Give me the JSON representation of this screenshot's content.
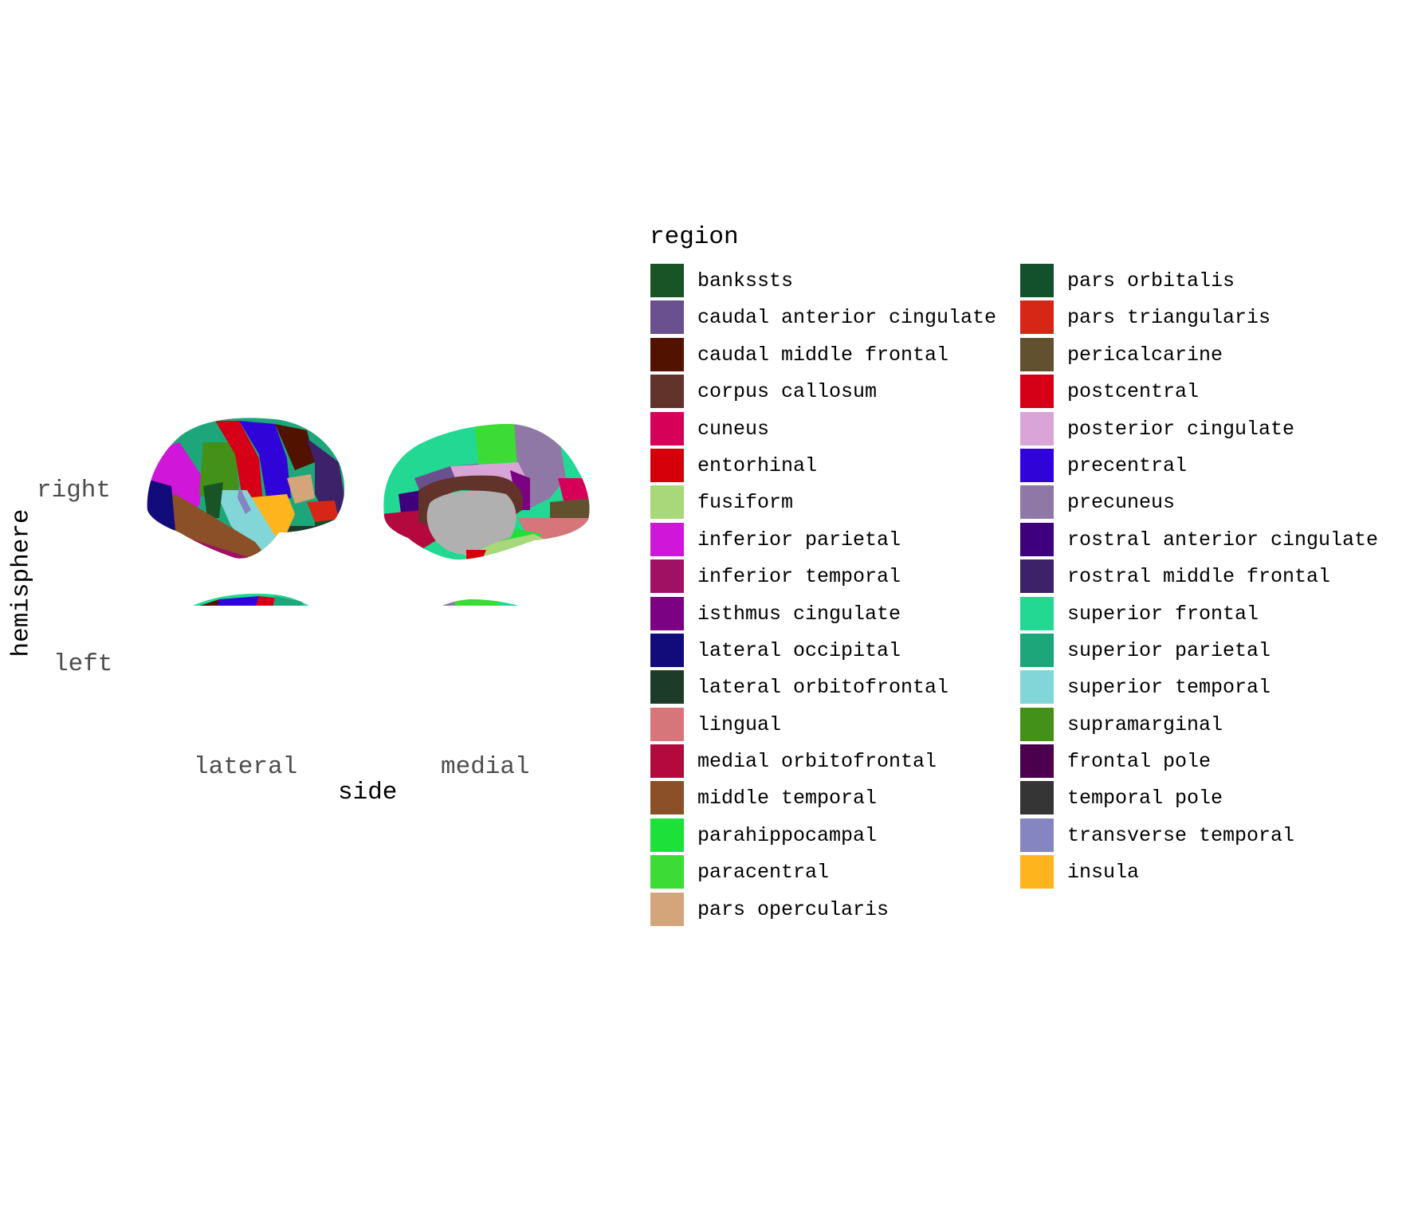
{
  "axes": {
    "x_title": "side",
    "y_title": "hemisphere",
    "x_labels": [
      "lateral",
      "medial"
    ],
    "y_labels": [
      "right",
      "left"
    ]
  },
  "legend": {
    "title": "region",
    "items": [
      {
        "label": "bankssts",
        "color": "#185425"
      },
      {
        "label": "caudal anterior cingulate",
        "color": "#6a508f"
      },
      {
        "label": "caudal middle frontal",
        "color": "#521200"
      },
      {
        "label": "corpus callosum",
        "color": "#61332a"
      },
      {
        "label": "cuneus",
        "color": "#d60058"
      },
      {
        "label": "entorhinal",
        "color": "#d6000b"
      },
      {
        "label": "fusiform",
        "color": "#a9d87b"
      },
      {
        "label": "inferior parietal",
        "color": "#d016d8"
      },
      {
        "label": "inferior temporal",
        "color": "#a01163"
      },
      {
        "label": "isthmus cingulate",
        "color": "#7b0283"
      },
      {
        "label": "lateral occipital",
        "color": "#120c7b"
      },
      {
        "label": "lateral orbitofrontal",
        "color": "#1d3b29"
      },
      {
        "label": "lingual",
        "color": "#d7767a"
      },
      {
        "label": "medial orbitofrontal",
        "color": "#b4093e"
      },
      {
        "label": "middle temporal",
        "color": "#8b5027"
      },
      {
        "label": "parahippocampal",
        "color": "#1ee03a"
      },
      {
        "label": "paracentral",
        "color": "#3cdb36"
      },
      {
        "label": "pars opercularis",
        "color": "#d4a47a"
      },
      {
        "label": "pars orbitalis",
        "color": "#13512c"
      },
      {
        "label": "pars triangularis",
        "color": "#d52616"
      },
      {
        "label": "pericalcarine",
        "color": "#62512f"
      },
      {
        "label": "postcentral",
        "color": "#d50018"
      },
      {
        "label": "posterior cingulate",
        "color": "#d8a5d6"
      },
      {
        "label": "precentral",
        "color": "#3004d8"
      },
      {
        "label": "precuneus",
        "color": "#9078a6"
      },
      {
        "label": "rostral anterior cingulate",
        "color": "#3f007d"
      },
      {
        "label": "rostral middle frontal",
        "color": "#3d2169"
      },
      {
        "label": "superior frontal",
        "color": "#22d892"
      },
      {
        "label": "superior parietal",
        "color": "#1ea67b"
      },
      {
        "label": "superior temporal",
        "color": "#82d6d8"
      },
      {
        "label": "supramarginal",
        "color": "#439118"
      },
      {
        "label": "frontal pole",
        "color": "#4b004e"
      },
      {
        "label": "temporal pole",
        "color": "#353535"
      },
      {
        "label": "transverse temporal",
        "color": "#8485c1"
      },
      {
        "label": "insula",
        "color": "#fdb41d"
      }
    ]
  }
}
